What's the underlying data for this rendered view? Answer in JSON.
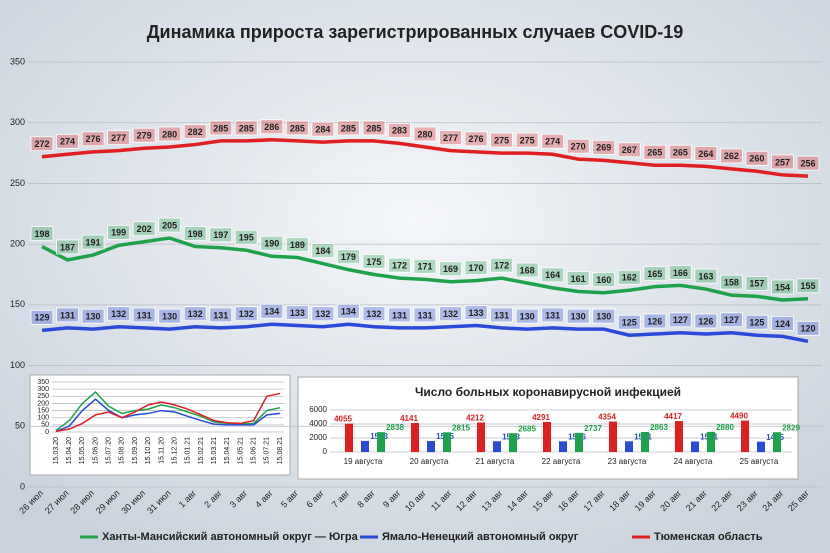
{
  "chart_data": [
    {
      "type": "line",
      "title": "Динамика прироста зарегистрированных случаев COVID-19",
      "categories": [
        "26 июл",
        "27 июл",
        "28 июл",
        "29 июл",
        "30 июл",
        "31 июл",
        "1 авг",
        "2 авг",
        "3 авг",
        "4 авг",
        "5 авг",
        "6 авг",
        "7 авг",
        "8 авг",
        "9 авг",
        "10 авг",
        "11 авг",
        "12 авг",
        "13 авг",
        "14 авг",
        "15 авг",
        "16 авг",
        "17 авг",
        "18 авг",
        "19 авг",
        "20 авг",
        "21 авг",
        "22 авг",
        "23 авг",
        "24 авг",
        "25 авг"
      ],
      "series": [
        {
          "name": "Ханты-Мансийский автономный округ — Югра",
          "color": "#1fa34a",
          "values": [
            198,
            187,
            191,
            199,
            202,
            205,
            198,
            197,
            195,
            190,
            189,
            184,
            179,
            175,
            172,
            171,
            169,
            170,
            172,
            168,
            164,
            161,
            160,
            162,
            165,
            166,
            163,
            158,
            157,
            154,
            155
          ]
        },
        {
          "name": "Ямало-Ненецкий автономный округ",
          "color": "#2a4bd7",
          "values": [
            129,
            131,
            130,
            132,
            131,
            130,
            132,
            131,
            132,
            134,
            133,
            132,
            134,
            132,
            131,
            131,
            132,
            133,
            131,
            130,
            131,
            130,
            130,
            125,
            126,
            127,
            126,
            127,
            125,
            124,
            120
          ]
        },
        {
          "name": "Тюменская область",
          "color": "#e02020",
          "values": [
            272,
            274,
            276,
            277,
            279,
            280,
            282,
            285,
            285,
            286,
            285,
            284,
            285,
            285,
            283,
            280,
            277,
            276,
            275,
            275,
            274,
            270,
            269,
            267,
            265,
            265,
            264,
            262,
            260,
            257,
            256
          ]
        }
      ],
      "ylim": [
        0,
        350
      ],
      "yticks": [
        0,
        50,
        100,
        150,
        200,
        250,
        300,
        350
      ],
      "grid": true,
      "data_labels": true,
      "legend": "bottom"
    },
    {
      "type": "line",
      "categories": [
        "15.03.20",
        "15.04.20",
        "15.05.20",
        "15.06.20",
        "15.07.20",
        "15.08.20",
        "15.09.20",
        "15.10.20",
        "15.11.20",
        "15.12.20",
        "15.01.21",
        "15.02.21",
        "15.03.21",
        "15.04.21",
        "15.05.21",
        "15.06.21",
        "15.07.21",
        "15.08.21"
      ],
      "series": [
        {
          "color": "#1fa34a",
          "values": [
            10,
            80,
            200,
            280,
            180,
            130,
            150,
            160,
            190,
            170,
            140,
            110,
            70,
            60,
            55,
            60,
            150,
            170
          ]
        },
        {
          "color": "#2a4bd7",
          "values": [
            5,
            40,
            150,
            230,
            150,
            100,
            120,
            130,
            150,
            140,
            110,
            80,
            55,
            50,
            50,
            50,
            120,
            130
          ]
        },
        {
          "color": "#e02020",
          "values": [
            5,
            20,
            60,
            120,
            140,
            100,
            140,
            190,
            210,
            190,
            160,
            120,
            80,
            65,
            60,
            80,
            250,
            270
          ]
        }
      ],
      "ylim": [
        0,
        350
      ],
      "yticks": [
        0,
        50,
        100,
        150,
        200,
        250,
        300,
        350
      ],
      "grid": true
    },
    {
      "type": "bar",
      "title": "Число больных коронавирусной инфекцией",
      "categories": [
        "19 августа",
        "20 августа",
        "21 августа",
        "22 августа",
        "23 августа",
        "24 августа",
        "25 августа"
      ],
      "series": [
        {
          "color": "#e02020",
          "values": [
            4055,
            4141,
            4212,
            4291,
            4354,
            4417,
            4490
          ]
        },
        {
          "color": "#2a4bd7",
          "values": [
            1583,
            1565,
            1533,
            1526,
            1531,
            1501,
            1475
          ]
        },
        {
          "color": "#1fa34a",
          "values": [
            2838,
            2815,
            2685,
            2737,
            2863,
            2880,
            2829
          ]
        }
      ],
      "ylim": [
        0,
        6000
      ],
      "yticks": [
        0,
        2000,
        4000,
        6000
      ],
      "grid": true,
      "data_labels": true
    }
  ]
}
